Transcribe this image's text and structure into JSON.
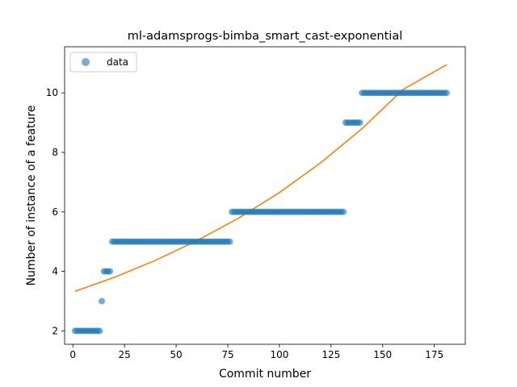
{
  "chart_data": {
    "type": "scatter",
    "title": "ml-adamsprogs-bimba_smart_cast-exponential",
    "xlabel": "Commit number",
    "ylabel": "Number of instance of a feature",
    "xlim": [
      -4,
      190
    ],
    "ylim": [
      1.55,
      11.55
    ],
    "xticks": [
      0,
      25,
      50,
      75,
      100,
      125,
      150,
      175
    ],
    "yticks": [
      2,
      4,
      6,
      8,
      10
    ],
    "grid": false,
    "legend": {
      "placement": "top-left",
      "entries": [
        "data"
      ]
    },
    "colors": {
      "data": "#1f77b4",
      "fit": "#ff7f0e"
    },
    "series": [
      {
        "name": "data",
        "kind": "points",
        "segments": [
          {
            "x_start": 1,
            "x_end": 13,
            "y": 2
          },
          {
            "x_start": 14,
            "x_end": 14,
            "y": 3
          },
          {
            "x_start": 15,
            "x_end": 18,
            "y": 4
          },
          {
            "x_start": 19,
            "x_end": 76,
            "y": 5
          },
          {
            "x_start": 77,
            "x_end": 131,
            "y": 6
          },
          {
            "x_start": 132,
            "x_end": 139,
            "y": 9
          },
          {
            "x_start": 140,
            "x_end": 181,
            "y": 10
          }
        ]
      },
      {
        "kind": "line",
        "fit": "exponential",
        "x_range": [
          1,
          181
        ],
        "points": [
          [
            1,
            3.33
          ],
          [
            20,
            3.8
          ],
          [
            40,
            4.37
          ],
          [
            60,
            5.03
          ],
          [
            80,
            5.78
          ],
          [
            100,
            6.65
          ],
          [
            120,
            7.65
          ],
          [
            140,
            8.8
          ],
          [
            160,
            10.12
          ],
          [
            181,
            10.95
          ]
        ]
      }
    ]
  }
}
